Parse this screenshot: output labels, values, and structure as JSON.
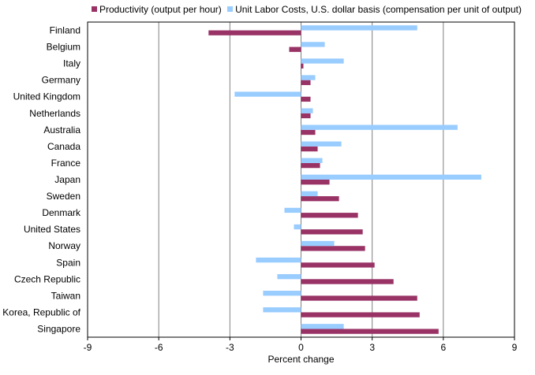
{
  "legend": {
    "productivity_label": "Productivity (output per hour)",
    "ulc_label": "Unit Labor Costs, U.S. dollar basis (compensation per unit of output)"
  },
  "colors": {
    "productivity": "#993366",
    "ulc": "#99ccff",
    "gridline": "#808080"
  },
  "chart_data": {
    "type": "bar",
    "orientation": "horizontal",
    "categories": [
      "Finland",
      "Belgium",
      "Italy",
      "Germany",
      "United Kingdom",
      "Netherlands",
      "Australia",
      "Canada",
      "France",
      "Japan",
      "Sweden",
      "Denmark",
      "United States",
      "Norway",
      "Spain",
      "Czech Republic",
      "Taiwan",
      "Korea, Republic of",
      "Singapore"
    ],
    "series": [
      {
        "name": "Productivity (output per hour)",
        "values": [
          -3.9,
          -0.5,
          0.1,
          0.4,
          0.4,
          0.4,
          0.6,
          0.7,
          0.8,
          1.2,
          1.6,
          2.4,
          2.6,
          2.7,
          3.1,
          3.9,
          4.9,
          5.0,
          5.8
        ]
      },
      {
        "name": "Unit Labor Costs, U.S. dollar basis (compensation per unit of output)",
        "values": [
          4.9,
          1.0,
          1.8,
          0.6,
          -2.8,
          0.5,
          6.6,
          1.7,
          0.9,
          7.6,
          0.7,
          -0.7,
          -0.3,
          1.4,
          -1.9,
          -1.0,
          -1.6,
          -1.6,
          1.8
        ]
      }
    ],
    "xlim": [
      -9,
      9
    ],
    "xticks": [
      -9,
      -6,
      -3,
      0,
      3,
      6,
      9
    ],
    "xlabel": "Percent change",
    "grid": true,
    "legend_position": "top"
  }
}
